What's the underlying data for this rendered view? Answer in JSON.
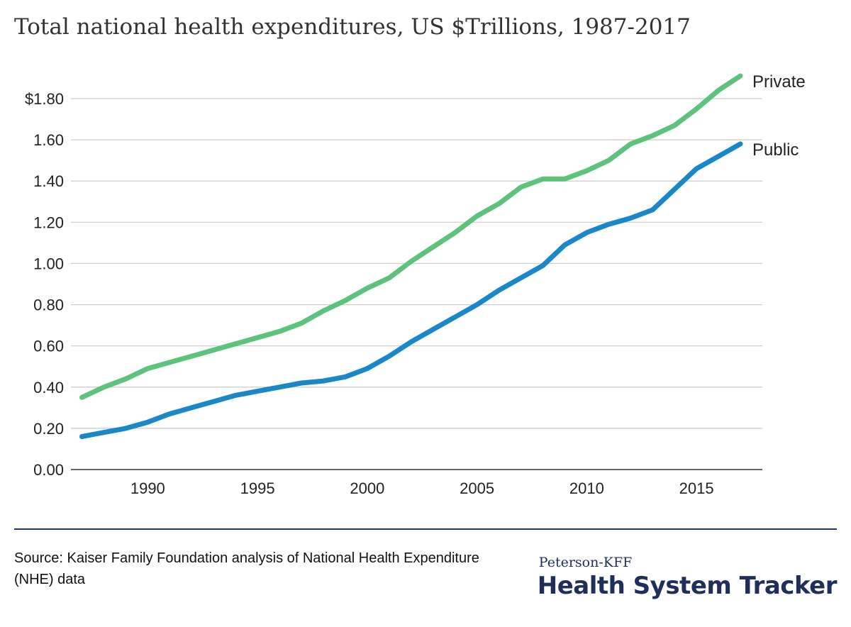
{
  "chart_data": {
    "type": "line",
    "title": "Total national health expenditures, US $Trillions, 1987-2017",
    "xlabel": "",
    "ylabel": "",
    "x": [
      1987,
      1988,
      1989,
      1990,
      1991,
      1992,
      1993,
      1994,
      1995,
      1996,
      1997,
      1998,
      1999,
      2000,
      2001,
      2002,
      2003,
      2004,
      2005,
      2006,
      2007,
      2008,
      2009,
      2010,
      2011,
      2012,
      2013,
      2014,
      2015,
      2016,
      2017
    ],
    "xlim": [
      1986.5,
      2018
    ],
    "x_ticks": [
      1990,
      1995,
      2000,
      2005,
      2010,
      2015
    ],
    "ylim": [
      0,
      1.8
    ],
    "y_ticks": [
      0,
      0.2,
      0.4,
      0.6,
      0.8,
      1.0,
      1.2,
      1.4,
      1.6,
      1.8
    ],
    "y_tick_labels": [
      "0.00",
      "0.20",
      "0.40",
      "0.60",
      "0.80",
      "1.00",
      "1.20",
      "1.40",
      "1.60",
      "$1.80"
    ],
    "grid": true,
    "legend": "series labels at line ends, right",
    "series": [
      {
        "name": "Private",
        "color": "#5dc37a",
        "values": [
          0.35,
          0.4,
          0.44,
          0.49,
          0.52,
          0.55,
          0.58,
          0.61,
          0.64,
          0.67,
          0.71,
          0.77,
          0.82,
          0.88,
          0.93,
          1.01,
          1.08,
          1.15,
          1.23,
          1.29,
          1.37,
          1.41,
          1.41,
          1.45,
          1.5,
          1.58,
          1.62,
          1.67,
          1.75,
          1.84,
          1.91
        ]
      },
      {
        "name": "Public",
        "color": "#1a87c9",
        "values": [
          0.16,
          0.18,
          0.2,
          0.23,
          0.27,
          0.3,
          0.33,
          0.36,
          0.38,
          0.4,
          0.42,
          0.43,
          0.45,
          0.49,
          0.55,
          0.62,
          0.68,
          0.74,
          0.8,
          0.87,
          0.93,
          0.99,
          1.09,
          1.15,
          1.19,
          1.22,
          1.26,
          1.36,
          1.46,
          1.52,
          1.58
        ]
      }
    ]
  },
  "footer": {
    "source": "Source: Kaiser Family Foundation analysis of National Health Expenditure (NHE) data",
    "brand_sub": "Peterson-KFF",
    "brand_main": "Health System Tracker"
  },
  "colors": {
    "grid": "#cccccc",
    "axis": "#333333",
    "rule": "#1f3a5f",
    "brand": "#1f2f5a"
  }
}
